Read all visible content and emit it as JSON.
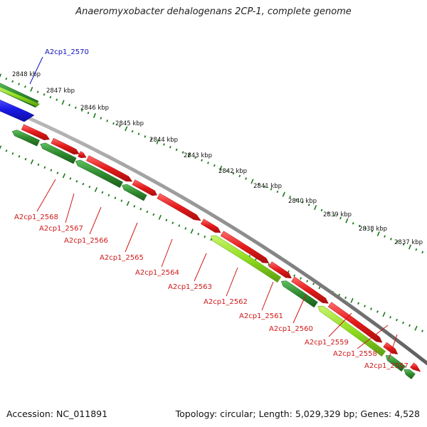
{
  "title": "Anaeromyxobacter dehalogenans 2CP-1, complete genome",
  "footer": {
    "accession": "Accession: NC_011891",
    "summary": "Topology: circular; Length: 5,029,329 bp; Genes: 4,528"
  },
  "colors": {
    "forward_gene": "#e41a1a",
    "reverse_gene": "#2e8b2e",
    "reverse_gene_highlight": "#8fdc1e",
    "selected_gene": "#1a1ae6",
    "backbone": "#8c8c8c",
    "tick": "#1a7a1a",
    "label_reverse": "#d01818",
    "label_selected": "#1010c0"
  },
  "kbp_labels": [
    "2848 kbp",
    "2847 kbp",
    "2846 kbp",
    "2845 kbp",
    "2844 kbp",
    "2843 kbp",
    "2842 kbp",
    "2841 kbp",
    "2840 kbp",
    "2839 kbp",
    "2838 kbp",
    "2837 kbp"
  ],
  "gene_labels": [
    {
      "id": "A2cp1_2570",
      "color": "selected"
    },
    {
      "id": "A2cp1_2568",
      "color": "reverse"
    },
    {
      "id": "A2cp1_2567",
      "color": "reverse"
    },
    {
      "id": "A2cp1_2566",
      "color": "reverse"
    },
    {
      "id": "A2cp1_2565",
      "color": "reverse"
    },
    {
      "id": "A2cp1_2564",
      "color": "reverse"
    },
    {
      "id": "A2cp1_2563",
      "color": "reverse"
    },
    {
      "id": "A2cp1_2562",
      "color": "reverse"
    },
    {
      "id": "A2cp1_2561",
      "color": "reverse"
    },
    {
      "id": "A2cp1_2560",
      "color": "reverse"
    },
    {
      "id": "A2cp1_2559",
      "color": "reverse"
    },
    {
      "id": "A2cp1_2558",
      "color": "reverse"
    },
    {
      "id": "A2cp1_2557",
      "color": "reverse"
    }
  ]
}
